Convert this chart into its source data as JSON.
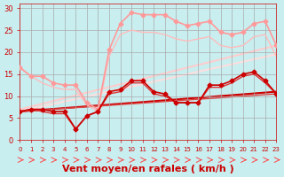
{
  "title": "",
  "xlabel": "Vent moyen/en rafales ( km/h )",
  "ylabel": "",
  "xlim": [
    0,
    23
  ],
  "ylim": [
    0,
    31
  ],
  "yticks": [
    0,
    5,
    10,
    15,
    20,
    25,
    30
  ],
  "xticks": [
    0,
    1,
    2,
    3,
    4,
    5,
    6,
    7,
    8,
    9,
    10,
    11,
    12,
    13,
    14,
    15,
    16,
    17,
    18,
    19,
    20,
    21,
    22,
    23
  ],
  "background_color": "#c8eef0",
  "grid_color": "#aaaaaa",
  "series": [
    {
      "x": [
        0,
        1,
        2,
        3,
        4,
        5,
        6,
        7,
        8,
        9,
        10,
        11,
        12,
        13,
        14,
        15,
        16,
        17,
        18,
        19,
        20,
        21,
        22,
        23
      ],
      "y": [
        16.5,
        14.5,
        14.5,
        13.0,
        12.5,
        12.5,
        8.5,
        7.0,
        20.5,
        26.5,
        29.0,
        28.5,
        28.5,
        28.5,
        27.0,
        26.0,
        26.5,
        27.0,
        24.5,
        24.0,
        24.5,
        26.5,
        27.0,
        21.5
      ],
      "color": "#ff9999",
      "lw": 1.2,
      "marker": "D",
      "ms": 2.5,
      "zorder": 3,
      "linestyle": "-"
    },
    {
      "x": [
        0,
        1,
        2,
        3,
        4,
        5,
        6,
        7,
        8,
        9,
        10,
        11,
        12,
        13,
        14,
        15,
        16,
        17,
        18,
        19,
        20,
        21,
        22,
        23
      ],
      "y": [
        16.5,
        14.5,
        13.0,
        12.0,
        11.5,
        11.5,
        8.0,
        6.5,
        19.0,
        24.0,
        25.0,
        24.5,
        24.5,
        24.0,
        23.0,
        22.5,
        23.0,
        23.5,
        21.5,
        21.0,
        21.5,
        23.5,
        24.0,
        19.0
      ],
      "color": "#ffbbbb",
      "lw": 1.0,
      "marker": null,
      "ms": 0,
      "zorder": 2,
      "linestyle": "-"
    },
    {
      "x": [
        0,
        1,
        2,
        3,
        4,
        5,
        6,
        7,
        8,
        9,
        10,
        11,
        12,
        13,
        14,
        15,
        16,
        17,
        18,
        19,
        20,
        21,
        22,
        23
      ],
      "y": [
        6.5,
        7.0,
        7.0,
        6.5,
        6.5,
        2.5,
        5.5,
        6.5,
        11.0,
        11.5,
        13.5,
        13.5,
        11.0,
        10.5,
        8.5,
        8.5,
        8.5,
        12.5,
        12.5,
        13.5,
        15.0,
        15.5,
        13.5,
        10.5
      ],
      "color": "#cc0000",
      "lw": 1.2,
      "marker": "D",
      "ms": 2.5,
      "zorder": 4,
      "linestyle": "-"
    },
    {
      "x": [
        0,
        1,
        2,
        3,
        4,
        5,
        6,
        7,
        8,
        9,
        10,
        11,
        12,
        13,
        14,
        15,
        16,
        17,
        18,
        19,
        20,
        21,
        22,
        23
      ],
      "y": [
        6.5,
        7.0,
        6.5,
        6.0,
        6.0,
        2.5,
        5.5,
        6.5,
        10.5,
        11.0,
        13.0,
        13.0,
        10.5,
        10.0,
        8.5,
        8.5,
        8.5,
        12.0,
        12.0,
        13.0,
        14.5,
        15.0,
        13.0,
        10.5
      ],
      "color": "#dd3333",
      "lw": 1.0,
      "marker": null,
      "ms": 0,
      "zorder": 3,
      "linestyle": "-"
    },
    {
      "x": [
        0,
        23
      ],
      "y": [
        7.0,
        21.5
      ],
      "color": "#ffcccc",
      "lw": 1.5,
      "marker": null,
      "ms": 0,
      "zorder": 1,
      "linestyle": "-"
    },
    {
      "x": [
        0,
        23
      ],
      "y": [
        6.5,
        19.5
      ],
      "color": "#ffdddd",
      "lw": 1.5,
      "marker": null,
      "ms": 0,
      "zorder": 1,
      "linestyle": "-"
    },
    {
      "x": [
        0,
        23
      ],
      "y": [
        6.5,
        11.0
      ],
      "color": "#cc0000",
      "lw": 1.5,
      "marker": null,
      "ms": 0,
      "zorder": 1,
      "linestyle": "-"
    },
    {
      "x": [
        0,
        23
      ],
      "y": [
        6.5,
        10.5
      ],
      "color": "#dd4444",
      "lw": 1.0,
      "marker": null,
      "ms": 0,
      "zorder": 1,
      "linestyle": "-"
    }
  ],
  "arrow_color": "#ff4444",
  "xlabel_color": "#cc0000",
  "xlabel_fontsize": 8,
  "tick_fontsize": 6,
  "tick_color": "#cc0000"
}
